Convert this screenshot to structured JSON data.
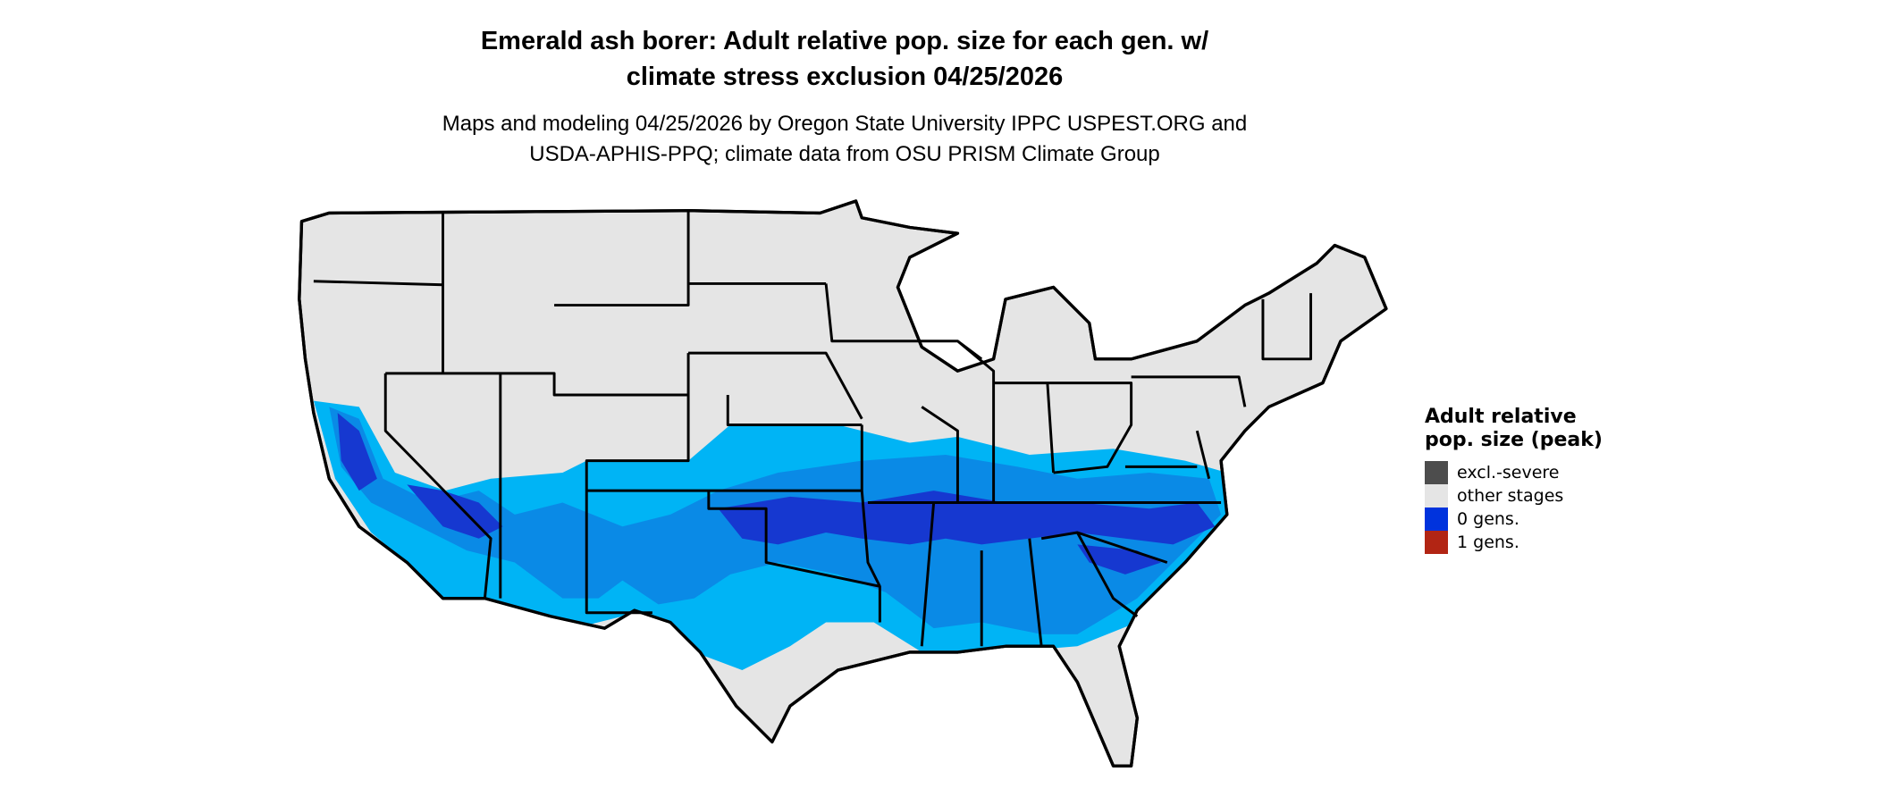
{
  "title": "Emerald ash borer: Adult relative pop. size for each gen. w/ climate stress exclusion 04/25/2026",
  "title_lines": [
    "Emerald ash borer: Adult relative pop. size for each gen. w/",
    "climate stress exclusion 04/25/2026"
  ],
  "subtitle_lines": [
    "Maps and modeling 04/25/2026 by Oregon State University IPPC USPEST.ORG and",
    "USDA-APHIS-PPQ; climate data from OSU PRISM Climate Group"
  ],
  "map": {
    "region": "Contiguous United States with state borders",
    "base_color": "#e5e5e5",
    "border_color": "#000000",
    "shading_colors": {
      "light": "#00b4f5",
      "medium": "#0a8ae6",
      "dark": "#1638d0"
    }
  },
  "legend": {
    "title": "Adult relative pop. size (peak)",
    "items": [
      {
        "label": "excl.-severe",
        "color": "#4d4d4d"
      },
      {
        "label": "other stages",
        "color": "#e5e5e5"
      },
      {
        "label": "0 gens.",
        "color": "#0033dd"
      },
      {
        "label": "1 gens.",
        "color": "#b22514"
      }
    ]
  }
}
